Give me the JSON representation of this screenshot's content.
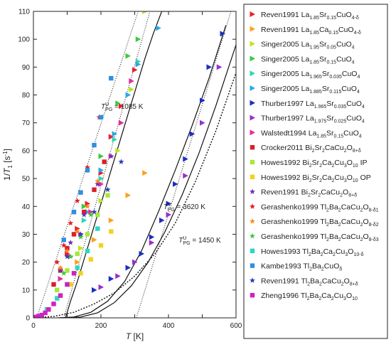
{
  "chart_data": {
    "type": "scatter",
    "xlabel": "T [K]",
    "ylabel": "1/T1 [s-1]",
    "xlim": [
      0,
      600
    ],
    "ylim": [
      0,
      110
    ],
    "xticks": [
      0,
      200,
      400,
      600
    ],
    "yticks": [
      0,
      10,
      20,
      30,
      40,
      50,
      60,
      70,
      80,
      90,
      100,
      110
    ],
    "grid": false,
    "legend_position": "right",
    "annotations": [
      {
        "text": "1085 K",
        "sup": "U",
        "label": "T",
        "sub": "PG",
        "x": 200,
        "y": 75
      },
      {
        "text": "3620 K",
        "sup": "V",
        "label": "T",
        "sub": "PG",
        "x": 385,
        "y": 39
      },
      {
        "text": "1450 K",
        "sup": "U",
        "label": "T",
        "sub": "PG",
        "x": 430,
        "y": 27
      }
    ],
    "lines": [
      {
        "style": "solid",
        "x": [
          95,
          110,
          130,
          155,
          180,
          205,
          230,
          255,
          280,
          305,
          330,
          355,
          380,
          405
        ],
        "y": [
          0,
          6,
          13,
          23,
          33,
          43,
          53,
          63,
          73,
          83,
          93,
          102,
          110,
          110
        ]
      },
      {
        "style": "solid",
        "x": [
          70,
          120,
          170,
          220,
          270,
          320,
          370,
          420,
          470,
          520,
          570
        ],
        "y": [
          0,
          0.3,
          2,
          6,
          13,
          24,
          38,
          53,
          69,
          86,
          105
        ]
      },
      {
        "style": "solid",
        "x": [
          90,
          140,
          190,
          240,
          290,
          340,
          390,
          440,
          490,
          540,
          600
        ],
        "y": [
          0,
          0.3,
          1.8,
          5.5,
          11.5,
          20,
          31,
          44,
          59,
          76,
          98
        ]
      },
      {
        "style": "dotted",
        "x": [
          0,
          60,
          120,
          180,
          240,
          300,
          360,
          420,
          480,
          540,
          600
        ],
        "y": [
          0,
          0.5,
          2,
          5,
          9,
          15,
          23,
          34,
          49,
          67,
          88
        ]
      },
      {
        "style": "dotted",
        "x": [
          10,
          310
        ],
        "y": [
          0,
          110
        ]
      },
      {
        "style": "dotted",
        "x": [
          90,
          345
        ],
        "y": [
          0,
          110
        ]
      },
      {
        "style": "dotted",
        "x": [
          305,
          585
        ],
        "y": [
          0,
          110
        ]
      }
    ],
    "series": [
      {
        "name": "Reven1991 La1.85Sr0.15CuO4-δ",
        "label_html": "Reven1991 La<tspan class='sub' dy='3'>1.85</tspan><tspan dy='-3'>Sr</tspan><tspan class='sub' dy='3'>0.15</tspan><tspan dy='-3'>CuO</tspan><tspan class='sub' dy='3'>4-δ</tspan>",
        "color": "#e8202a",
        "marker": "tri-right",
        "x": [
          100,
          130,
          160,
          200,
          230,
          260,
          300
        ],
        "y": [
          23,
          32,
          41,
          52,
          65,
          76,
          89
        ]
      },
      {
        "name": "Reven1991 La1.85Ca0.15CuO4-δ",
        "label_html": "Reven1991 La<tspan class='sub' dy='3'>1.85</tspan><tspan dy='-3'>Ca</tspan><tspan class='sub' dy='3'>0.15</tspan><tspan dy='-3'>CuO</tspan><tspan class='sub' dy='3'>4-δ</tspan>",
        "color": "#ff9f1a",
        "marker": "tri-right",
        "x": [
          130,
          180,
          230,
          280,
          330
        ],
        "y": [
          20,
          28,
          35,
          44,
          52
        ]
      },
      {
        "name": "Singer2005 La1.95Sr0.05CuO4",
        "label_html": "Singer2005 La<tspan class='sub' dy='3'>1.95</tspan><tspan dy='-3'>Sr</tspan><tspan class='sub' dy='3'>0.05</tspan><tspan dy='-3'>CuO</tspan><tspan class='sub' dy='3'>4</tspan>",
        "color": "#b8e620",
        "marker": "tri-right",
        "x": [
          140,
          200,
          250,
          290,
          330
        ],
        "y": [
          25,
          42,
          60,
          82,
          110
        ]
      },
      {
        "name": "Singer2005 La1.85Sr0.15CuO4",
        "label_html": "Singer2005 La<tspan class='sub' dy='3'>1.85</tspan><tspan dy='-3'>Sr</tspan><tspan class='sub' dy='3'>0.15</tspan><tspan dy='-3'>CuO</tspan><tspan class='sub' dy='3'>4</tspan>",
        "color": "#3ec93e",
        "marker": "tri-right",
        "x": [
          150,
          200,
          250,
          280,
          310
        ],
        "y": [
          40,
          58,
          77,
          94,
          100
        ]
      },
      {
        "name": "Singer2005 La1.965Sr0.035CuO4",
        "label_html": "Singer2005 La<tspan class='sub' dy='3'>1.965</tspan><tspan dy='-3'>Sr</tspan><tspan class='sub' dy='3'>0.035</tspan><tspan dy='-3'>CuO</tspan><tspan class='sub' dy='3'>4</tspan>",
        "color": "#2fd6b0",
        "marker": "tri-right",
        "x": [
          150,
          200,
          240,
          280,
          310
        ],
        "y": [
          35,
          50,
          64,
          80,
          92
        ]
      },
      {
        "name": "Singer2005 La1.885Sr0.115CuO4",
        "label_html": "Singer2005 La<tspan class='sub' dy='3'>1.885</tspan><tspan dy='-3'>Sr</tspan><tspan class='sub' dy='3'>0.115</tspan><tspan dy='-3'>CuO</tspan><tspan class='sub' dy='3'>4</tspan>",
        "color": "#29a8e8",
        "marker": "tri-right",
        "x": [
          160,
          200,
          240,
          280,
          310,
          370
        ],
        "y": [
          38,
          53,
          66,
          80,
          91,
          104
        ]
      },
      {
        "name": "Thurber1997 La1.965Sr0.035CuO4",
        "label_html": "Thurber1997 La<tspan class='sub' dy='3'>1.965</tspan><tspan dy='-3'>Sr</tspan><tspan class='sub' dy='3'>0.035</tspan><tspan dy='-3'>CuO</tspan><tspan class='sub' dy='3'>4</tspan>",
        "color": "#1a2fc0",
        "marker": "tri-right",
        "x": [
          180,
          230,
          280,
          320,
          350,
          380,
          400,
          420,
          450,
          470,
          500,
          520,
          560
        ],
        "y": [
          10,
          14,
          18,
          23,
          29,
          35,
          41,
          48,
          57,
          66,
          78,
          90,
          102
        ]
      },
      {
        "name": "Thurber1997 La1.975Sr0.025CuO4",
        "label_html": "Thurber1997 La<tspan class='sub' dy='3'>1.975</tspan><tspan dy='-3'>Sr</tspan><tspan class='sub' dy='3'>0.025</tspan><tspan dy='-3'>CuO</tspan><tspan class='sub' dy='3'>4</tspan>",
        "color": "#9b2fc8",
        "marker": "tri-right",
        "x": [
          200,
          250,
          300,
          350,
          400,
          450,
          500,
          550
        ],
        "y": [
          11,
          15,
          20,
          27,
          37,
          51,
          70,
          90
        ]
      },
      {
        "name": "Walstedt1994 La1.85Sr0.15CuO4",
        "label_html": "Walstedt1994 La<tspan class='sub' dy='3'>1.85</tspan><tspan dy='-3'>Sr</tspan><tspan class='sub' dy='3'>0.15</tspan><tspan dy='-3'>CuO</tspan><tspan class='sub' dy='3'>4</tspan>",
        "color": "#e0309a",
        "marker": "tri-right",
        "x": [
          80,
          110,
          140,
          170,
          200,
          230,
          260,
          290
        ],
        "y": [
          14,
          22,
          30,
          38,
          48,
          58,
          70,
          85
        ]
      },
      {
        "name": "Crocker2011 Bi2Sr2CaCu2O8+δ",
        "label_html": "Crocker2011 Bi<tspan class='sub' dy='3'>2</tspan><tspan dy='-3'>Sr</tspan><tspan class='sub' dy='3'>2</tspan><tspan dy='-3'>CaCu</tspan><tspan class='sub' dy='3'>2</tspan><tspan dy='-3'>O</tspan><tspan class='sub' dy='3'>8+δ</tspan>",
        "color": "#d81f2c",
        "marker": "square",
        "x": [
          60,
          80,
          100,
          120,
          150,
          180,
          210
        ],
        "y": [
          12,
          17,
          25,
          30,
          38,
          46,
          56
        ]
      },
      {
        "name": "Howes1992 Bi2Sr2Ca2Cu3O10 IP",
        "label_html": "Howes1992 Bi<tspan class='sub' dy='3'>2</tspan><tspan dy='-3'>Sr</tspan><tspan class='sub' dy='3'>2</tspan><tspan dy='-3'>Ca</tspan><tspan class='sub' dy='3'>2</tspan><tspan dy='-3'>Cu</tspan><tspan class='sub' dy='3'>3</tspan><tspan dy='-3'>O</tspan><tspan class='sub' dy='3'>10</tspan><tspan dy='-3'> IP</tspan>",
        "color": "#a6e83a",
        "marker": "square",
        "x": [
          70,
          100,
          130,
          160,
          190,
          220
        ],
        "y": [
          10,
          17,
          23,
          30,
          37,
          44
        ]
      },
      {
        "name": "Howes1992 Bi2Sr2Ca2Cu3O10 OP",
        "label_html": "Howes1992 Bi<tspan class='sub' dy='3'>2</tspan><tspan dy='-3'>Sr</tspan><tspan class='sub' dy='3'>2</tspan><tspan dy='-3'>Ca</tspan><tspan class='sub' dy='3'>2</tspan><tspan dy='-3'>Cu</tspan><tspan class='sub' dy='3'>3</tspan><tspan dy='-3'>O</tspan><tspan class='sub' dy='3'>10</tspan><tspan dy='-3'> OP</tspan>",
        "color": "#f2d21c",
        "marker": "square",
        "x": [
          80,
          110,
          140,
          170,
          200,
          230
        ],
        "y": [
          8,
          12,
          16,
          21,
          26,
          31
        ]
      },
      {
        "name": "Reven1991 Bi2Sr2CaCu2O8+δ",
        "label_html": "Reven1991 Bi<tspan class='sub' dy='3'>2</tspan><tspan dy='-3'>Sr</tspan><tspan class='sub' dy='3'>2</tspan><tspan dy='-3'>CaCu</tspan><tspan class='sub' dy='3'>2</tspan><tspan dy='-3'>O</tspan><tspan class='sub' dy='3'>8+δ</tspan>",
        "color": "#6a2fb8",
        "marker": "star",
        "x": [
          80,
          110,
          150,
          190,
          230
        ],
        "y": [
          17,
          27,
          37,
          48,
          58
        ]
      },
      {
        "name": "Gerashenko1999 Tl2Ba2CaCu2O8-δ1",
        "label_html": "Gerashenko1999 Tl<tspan class='sub' dy='3'>2</tspan><tspan dy='-3'>Ba</tspan><tspan class='sub' dy='3'>2</tspan><tspan dy='-3'>CaCu</tspan><tspan class='sub' dy='3'>2</tspan><tspan dy='-3'>O</tspan><tspan class='sub' dy='3'>8-δ1</tspan>",
        "color": "#e0202a",
        "marker": "star",
        "x": [
          70,
          90,
          110,
          130,
          160,
          195
        ],
        "y": [
          20,
          26,
          34,
          42,
          54,
          72
        ]
      },
      {
        "name": "Gerashenko1999 Tl2Ba2CaCu2O8-δ2",
        "label_html": "Gerashenko1999 Tl<tspan class='sub' dy='3'>2</tspan><tspan dy='-3'>Ba</tspan><tspan class='sub' dy='3'>2</tspan><tspan dy='-3'>CaCu</tspan><tspan class='sub' dy='3'>2</tspan><tspan dy='-3'>O</tspan><tspan class='sub' dy='3'>8-δ2</tspan>",
        "color": "#ff8a1a",
        "marker": "star",
        "x": [
          80,
          100,
          130,
          160,
          190
        ],
        "y": [
          18,
          24,
          31,
          40,
          49
        ]
      },
      {
        "name": "Gerashenko1999 Tl2Ba2CaCu2O8-δ3",
        "label_html": "Gerashenko1999 Tl<tspan class='sub' dy='3'>2</tspan><tspan dy='-3'>Ba</tspan><tspan class='sub' dy='3'>2</tspan><tspan dy='-3'>CaCu</tspan><tspan class='sub' dy='3'>2</tspan><tspan dy='-3'>O</tspan><tspan class='sub' dy='3'>8-δ3</tspan>",
        "color": "#3cc83c",
        "marker": "star",
        "x": [
          90,
          110,
          140,
          170
        ],
        "y": [
          16,
          22,
          29,
          37
        ]
      },
      {
        "name": "Howes1993 Tl2Ba2Ca2Cu3O10-δ",
        "label_html": "Howes1993 Tl<tspan class='sub' dy='3'>2</tspan><tspan dy='-3'>Ba</tspan><tspan class='sub' dy='3'>2</tspan><tspan dy='-3'>Ca</tspan><tspan class='sub' dy='3'>2</tspan><tspan dy='-3'>Cu</tspan><tspan class='sub' dy='3'>3</tspan><tspan dy='-3'>O</tspan><tspan class='sub' dy='3'>10-δ</tspan>",
        "color": "#2fd6c0",
        "marker": "square",
        "x": [
          40,
          70,
          100,
          130,
          160,
          190
        ],
        "y": [
          3,
          7,
          12,
          18,
          24,
          32
        ]
      },
      {
        "name": "Kambe1993 Tl2Ba2CuOδ",
        "label_html": "Kambe1993 Tl<tspan class='sub' dy='3'>2</tspan><tspan dy='-3'>Ba</tspan><tspan class='sub' dy='3'>2</tspan><tspan dy='-3'>CuO</tspan><tspan class='sub' dy='3'>δ</tspan>",
        "color": "#2f8fe0",
        "marker": "square",
        "x": [
          90,
          120,
          140,
          160,
          180,
          200,
          230
        ],
        "y": [
          28,
          38,
          45,
          53,
          62,
          72,
          86
        ]
      },
      {
        "name": "Reven1991 Tl2Ba2CaCu2O8+δ",
        "label_html": "Reven1991 Tl<tspan class='sub' dy='3'>2</tspan><tspan dy='-3'>Ba</tspan><tspan class='sub' dy='3'>2</tspan><tspan dy='-3'>CaCu</tspan><tspan class='sub' dy='3'>2</tspan><tspan dy='-3'>O</tspan><tspan class='sub' dy='3'>8+δ</tspan>",
        "color": "#2a3fb8",
        "marker": "star",
        "x": [
          100,
          140,
          180,
          220,
          260
        ],
        "y": [
          22,
          30,
          38,
          46,
          56
        ]
      },
      {
        "name": "Zheng1996 Tl2Ba2Ca2Cu3O10",
        "label_html": "Zheng1996 Tl<tspan class='sub' dy='3'>2</tspan><tspan dy='-3'>Ba</tspan><tspan class='sub' dy='3'>2</tspan><tspan dy='-3'>Ca</tspan><tspan class='sub' dy='3'>2</tspan><tspan dy='-3'>Cu</tspan><tspan class='sub' dy='3'>3</tspan><tspan dy='-3'>O</tspan><tspan class='sub' dy='3'>10</tspan>",
        "color": "#d020c0",
        "marker": "square",
        "x": [
          5,
          15,
          25,
          35,
          45,
          60,
          80,
          100,
          120
        ],
        "y": [
          0.3,
          0.6,
          1,
          1.8,
          3,
          5,
          8,
          12,
          16
        ]
      }
    ]
  }
}
